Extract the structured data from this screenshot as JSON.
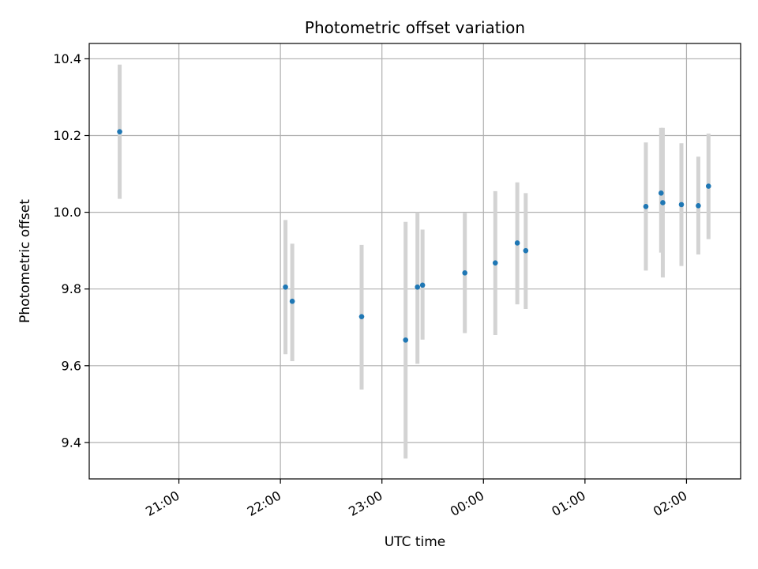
{
  "chart_data": {
    "type": "scatter",
    "title": "Photometric offset variation",
    "xlabel": "UTC time",
    "ylabel": "Photometric offset",
    "xlim": [
      "20:07",
      "02:32"
    ],
    "ylim": [
      9.305,
      10.44
    ],
    "grid": true,
    "x_ticks": [
      "21:00",
      "22:00",
      "23:00",
      "00:00",
      "01:00",
      "02:00"
    ],
    "y_ticks": [
      9.4,
      9.6,
      9.8,
      10.0,
      10.2,
      10.4
    ],
    "y_tick_labels": [
      "9.4",
      "9.6",
      "9.8",
      "10.0",
      "10.2",
      "10.4"
    ],
    "colors": {
      "point": "#1f77b4",
      "errorbar": "#d3d3d3",
      "grid": "#b0b0b0"
    },
    "series": [
      {
        "x": [
          "20:25",
          "22:03",
          "22:07",
          "22:48",
          "23:14",
          "23:21",
          "23:24",
          "23:49",
          "00:07",
          "00:20",
          "00:25",
          "01:36",
          "01:45",
          "01:46",
          "01:57",
          "02:07",
          "02:13"
        ],
        "y": [
          10.21,
          9.805,
          9.768,
          9.728,
          9.667,
          9.805,
          9.81,
          9.842,
          9.868,
          9.92,
          9.9,
          10.015,
          10.05,
          10.025,
          10.02,
          10.017,
          10.068
        ],
        "err_low": [
          10.035,
          9.63,
          9.612,
          9.538,
          9.358,
          9.605,
          9.668,
          9.685,
          9.68,
          9.76,
          9.748,
          9.848,
          9.895,
          9.83,
          9.86,
          9.89,
          9.93
        ],
        "err_high": [
          10.385,
          9.98,
          9.918,
          9.915,
          9.975,
          10.0,
          9.955,
          9.998,
          10.055,
          10.078,
          10.05,
          10.182,
          10.22,
          10.22,
          10.18,
          10.145,
          10.205
        ]
      }
    ]
  }
}
